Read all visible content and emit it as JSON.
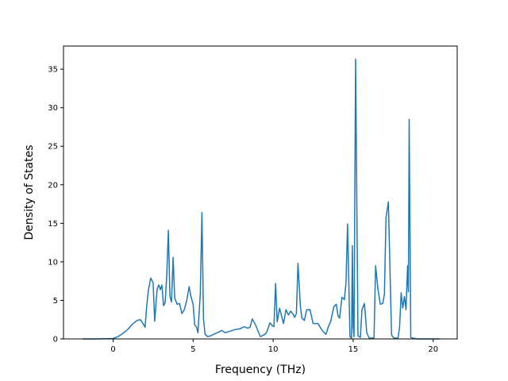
{
  "chart_data": {
    "type": "line",
    "title": "",
    "xlabel": "Frequency (THz)",
    "ylabel": "Density of States",
    "xlim": [
      -3.1,
      21.5
    ],
    "ylim": [
      0,
      38
    ],
    "xticks": [
      0,
      5,
      10,
      15,
      20
    ],
    "yticks": [
      0,
      5,
      10,
      15,
      20,
      25,
      30,
      35
    ],
    "grid": false,
    "legend": "none",
    "colors": {
      "line": "#1f77b4",
      "axes": "#000000",
      "background": "#ffffff"
    },
    "series": [
      {
        "x": [
          -1.9,
          -1.0,
          0.0,
          0.3,
          0.6,
          0.9,
          1.2,
          1.5,
          1.7,
          1.9,
          2.0,
          2.1,
          2.2,
          2.35,
          2.5,
          2.6,
          2.75,
          2.85,
          2.95,
          3.05,
          3.15,
          3.25,
          3.35,
          3.45,
          3.55,
          3.65,
          3.75,
          3.85,
          4.0,
          4.15,
          4.3,
          4.45,
          4.6,
          4.75,
          4.85,
          5.0,
          5.1,
          5.2,
          5.3,
          5.45,
          5.55,
          5.65,
          5.75,
          5.9,
          6.1,
          6.4,
          6.8,
          7.0,
          7.3,
          7.6,
          7.9,
          8.2,
          8.4,
          8.55,
          8.7,
          8.9,
          9.2,
          9.5,
          9.6,
          9.8,
          9.95,
          10.05,
          10.15,
          10.25,
          10.4,
          10.55,
          10.65,
          10.8,
          10.95,
          11.1,
          11.25,
          11.35,
          11.45,
          11.55,
          11.7,
          11.8,
          11.95,
          12.1,
          12.3,
          12.5,
          12.8,
          13.0,
          13.15,
          13.3,
          13.45,
          13.6,
          13.7,
          13.8,
          13.95,
          14.05,
          14.15,
          14.3,
          14.45,
          14.55,
          14.65,
          14.8,
          14.9,
          14.95,
          15.0,
          15.05,
          15.15,
          15.3,
          15.45,
          15.55,
          15.7,
          15.85,
          16.0,
          16.15,
          16.3,
          16.4,
          16.55,
          16.7,
          16.85,
          16.95,
          17.05,
          17.2,
          17.4,
          17.55,
          17.7,
          17.8,
          17.9,
          18.0,
          18.1,
          18.2,
          18.3,
          18.4,
          18.45,
          18.5,
          18.6,
          18.75,
          19.0,
          20.4
        ],
        "y": [
          0,
          0,
          0.05,
          0.3,
          0.7,
          1.2,
          1.9,
          2.4,
          2.5,
          1.9,
          1.5,
          4.2,
          6.3,
          7.9,
          7.3,
          2.3,
          6.5,
          7.0,
          6.4,
          7.0,
          4.3,
          4.7,
          8.0,
          14.1,
          5.5,
          4.8,
          10.6,
          5.3,
          4.5,
          4.6,
          3.3,
          3.8,
          5.0,
          6.8,
          5.6,
          4.5,
          1.8,
          1.6,
          0.8,
          6.0,
          16.4,
          2.5,
          0.6,
          0.3,
          0.4,
          0.7,
          1.1,
          0.8,
          1.0,
          1.2,
          1.3,
          1.6,
          1.4,
          1.5,
          2.6,
          1.8,
          0.3,
          0.6,
          0.9,
          2.1,
          1.7,
          1.6,
          7.2,
          2.2,
          4.0,
          2.8,
          2.0,
          3.8,
          3.1,
          3.6,
          3.2,
          2.8,
          3.3,
          9.8,
          4.3,
          2.7,
          2.4,
          3.8,
          3.8,
          2.0,
          2.0,
          1.3,
          0.9,
          0.6,
          1.6,
          2.3,
          3.3,
          4.2,
          4.5,
          3.0,
          2.7,
          5.4,
          5.1,
          7.3,
          14.9,
          0.3,
          0.1,
          12.1,
          1.6,
          0.3,
          36.3,
          0.4,
          0.2,
          3.8,
          4.6,
          0.8,
          0.1,
          0.1,
          0.1,
          9.5,
          6.4,
          4.5,
          4.6,
          5.8,
          15.7,
          17.8,
          0.5,
          0.1,
          0.1,
          0.1,
          1.5,
          6.0,
          4.0,
          5.5,
          3.8,
          9.5,
          6.1,
          28.5,
          0.2,
          0.1,
          0,
          0
        ]
      }
    ]
  }
}
